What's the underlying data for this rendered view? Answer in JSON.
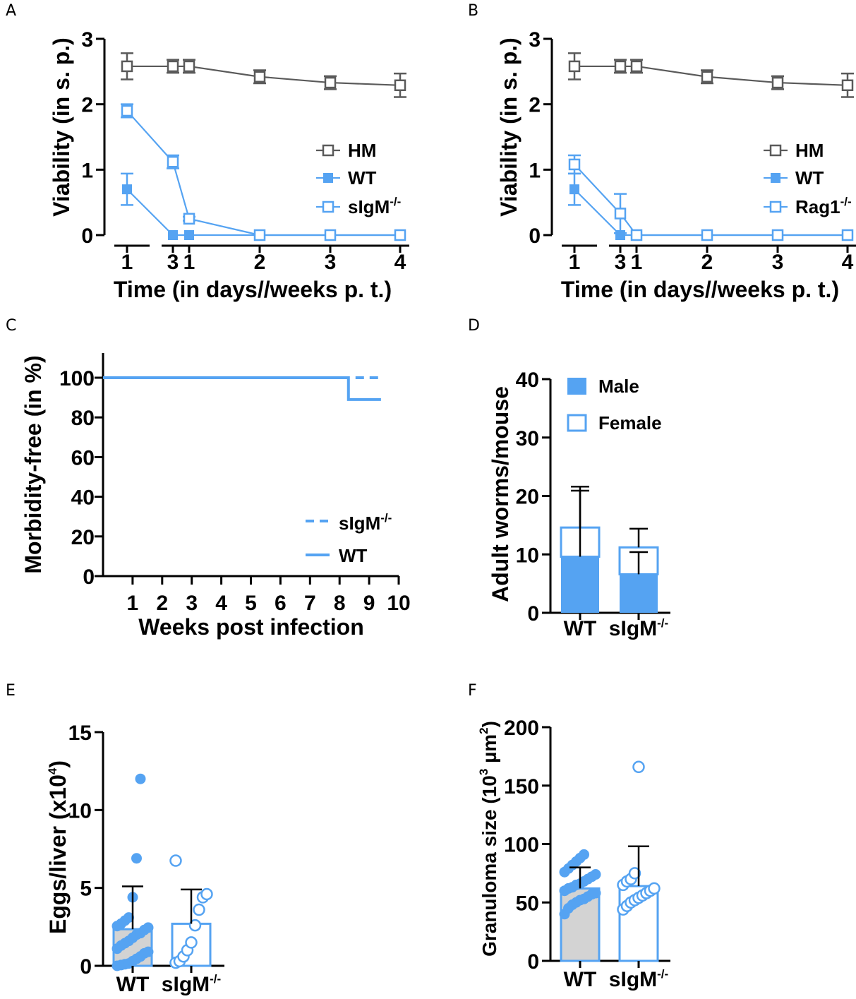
{
  "colors": {
    "blue": "#55a3f2",
    "gray": "#5a5a5a",
    "lightgray": "#d3d3d3",
    "black": "#000000",
    "white": "#ffffff"
  },
  "panels": {
    "A": "A",
    "B": "B",
    "C": "C",
    "D": "D",
    "E": "E",
    "F": "F"
  },
  "sup_ko": "-/-",
  "chart_data": [
    {
      "panel": "A",
      "type": "line",
      "xlabel": "Time (in days//weeks p. t.)",
      "ylabel": "Viability (in s. p.)",
      "ylim": [
        0,
        3
      ],
      "yticks": [
        "0",
        "1",
        "2",
        "3"
      ],
      "xtick_labels": [
        "1",
        "3",
        "1",
        "2",
        "3",
        "4"
      ],
      "legend": [
        "HM",
        "WT",
        "sIgM"
      ],
      "series": [
        {
          "name": "HM",
          "style": "open-gray",
          "points": [
            {
              "x": "day 1",
              "y": 2.58,
              "err": 0.2
            },
            {
              "x": "day 3",
              "y": 2.58,
              "err": 0.1
            },
            {
              "x": "week 1",
              "y": 2.58,
              "err": 0.1
            },
            {
              "x": "week 2",
              "y": 2.42,
              "err": 0.1
            },
            {
              "x": "week 3",
              "y": 2.33,
              "err": 0.1
            },
            {
              "x": "week 4",
              "y": 2.29,
              "err": 0.18
            }
          ]
        },
        {
          "name": "WT",
          "style": "filled-blue",
          "points": [
            {
              "x": "day 1",
              "y": 0.7,
              "err": 0.24
            },
            {
              "x": "day 3",
              "y": 0.0,
              "err": 0
            },
            {
              "x": "week 1",
              "y": 0.0,
              "err": 0
            },
            {
              "x": "week 2",
              "y": 0.0,
              "err": 0
            },
            {
              "x": "week 3",
              "y": 0.0,
              "err": 0
            },
            {
              "x": "week 4",
              "y": 0.0,
              "err": 0
            }
          ]
        },
        {
          "name": "sIgM-/-",
          "style": "open-blue",
          "points": [
            {
              "x": "day 1",
              "y": 1.9,
              "err": 0.1
            },
            {
              "x": "day 3",
              "y": 1.12,
              "err": 0.1
            },
            {
              "x": "week 1",
              "y": 0.25,
              "err": 0.03
            },
            {
              "x": "week 2",
              "y": 0.0,
              "err": 0
            },
            {
              "x": "week 3",
              "y": 0.0,
              "err": 0
            },
            {
              "x": "week 4",
              "y": 0.0,
              "err": 0
            }
          ]
        }
      ]
    },
    {
      "panel": "B",
      "type": "line",
      "xlabel": "Time (in days//weeks p. t.)",
      "ylabel": "Viability (in s. p.)",
      "ylim": [
        0,
        3
      ],
      "yticks": [
        "0",
        "1",
        "2",
        "3"
      ],
      "xtick_labels": [
        "1",
        "3",
        "1",
        "2",
        "3",
        "4"
      ],
      "legend": [
        "HM",
        "WT",
        "Rag1"
      ],
      "series": [
        {
          "name": "HM",
          "style": "open-gray",
          "points": [
            {
              "x": "day 1",
              "y": 2.58,
              "err": 0.2
            },
            {
              "x": "day 3",
              "y": 2.58,
              "err": 0.1
            },
            {
              "x": "week 1",
              "y": 2.58,
              "err": 0.1
            },
            {
              "x": "week 2",
              "y": 2.42,
              "err": 0.1
            },
            {
              "x": "week 3",
              "y": 2.33,
              "err": 0.1
            },
            {
              "x": "week 4",
              "y": 2.29,
              "err": 0.18
            }
          ]
        },
        {
          "name": "WT",
          "style": "filled-blue",
          "points": [
            {
              "x": "day 1",
              "y": 0.7,
              "err": 0.24
            },
            {
              "x": "day 3",
              "y": 0.0,
              "err": 0
            },
            {
              "x": "week 1",
              "y": 0.0,
              "err": 0
            },
            {
              "x": "week 2",
              "y": 0.0,
              "err": 0
            },
            {
              "x": "week 3",
              "y": 0.0,
              "err": 0
            },
            {
              "x": "week 4",
              "y": 0.0,
              "err": 0
            }
          ]
        },
        {
          "name": "Rag1-/-",
          "style": "open-blue",
          "points": [
            {
              "x": "day 1",
              "y": 1.08,
              "err": 0.14
            },
            {
              "x": "day 3",
              "y": 0.33,
              "err": 0.3
            },
            {
              "x": "week 1",
              "y": 0.0,
              "err": 0
            },
            {
              "x": "week 2",
              "y": 0.0,
              "err": 0
            },
            {
              "x": "week 3",
              "y": 0.0,
              "err": 0
            },
            {
              "x": "week 4",
              "y": 0.0,
              "err": 0
            }
          ]
        }
      ]
    },
    {
      "panel": "C",
      "type": "line",
      "xlabel": "Weeks post infection",
      "ylabel": "Morbidity-free (in %)",
      "ylim": [
        0,
        100
      ],
      "xlim": [
        0,
        10
      ],
      "yticks": [
        "0",
        "20",
        "40",
        "60",
        "80",
        "100"
      ],
      "xticks": [
        "1",
        "2",
        "3",
        "4",
        "5",
        "6",
        "7",
        "8",
        "9",
        "10"
      ],
      "legend": [
        "sIgM",
        "WT"
      ],
      "series": [
        {
          "name": "sIgM-/-",
          "style": "dashed",
          "steps": [
            {
              "x": 0,
              "y": 100
            },
            {
              "x": 9.4,
              "y": 100
            }
          ]
        },
        {
          "name": "WT",
          "style": "solid",
          "steps": [
            {
              "x": 0,
              "y": 100
            },
            {
              "x": 8.3,
              "y": 100
            },
            {
              "x": 8.3,
              "y": 89
            },
            {
              "x": 9.4,
              "y": 89
            }
          ]
        }
      ]
    },
    {
      "panel": "D",
      "type": "bar",
      "stacked": true,
      "ylabel": "Adult worms/mouse",
      "ylim": [
        0,
        40
      ],
      "yticks": [
        "0",
        "10",
        "20",
        "30",
        "40"
      ],
      "categories": [
        "WT",
        "sIgM"
      ],
      "legend": [
        "Male",
        "Female"
      ],
      "series": [
        {
          "name": "Male",
          "values": [
            9.6,
            6.6
          ],
          "sd": [
            11.3,
            3.8
          ]
        },
        {
          "name": "Female",
          "values": [
            5.0,
            4.6
          ],
          "sd": [
            7.0,
            3.2
          ]
        }
      ]
    },
    {
      "panel": "E",
      "type": "bar",
      "ylabel": "Eggs/liver (x10",
      "ylabel_sup": "4",
      "ylabel_end": ")",
      "ylim": [
        0,
        15
      ],
      "yticks": [
        "0",
        "5",
        "10",
        "15"
      ],
      "categories": [
        "WT",
        "sIgM"
      ],
      "means": [
        2.35,
        2.7
      ],
      "sd": [
        2.75,
        2.2
      ],
      "points": [
        [
          0.0,
          0.05,
          0.1,
          0.15,
          0.3,
          0.45,
          0.6,
          0.8,
          0.9,
          1.1,
          1.3,
          1.45,
          1.6,
          1.8,
          2.0,
          2.1,
          2.3,
          2.45,
          2.55,
          2.7,
          2.9,
          3.1,
          4.4,
          6.9,
          12.0
        ],
        [
          0.2,
          0.3,
          0.6,
          1.0,
          1.5,
          2.6,
          3.6,
          4.4,
          4.6,
          6.75
        ]
      ]
    },
    {
      "panel": "F",
      "type": "bar",
      "ylabel": "Granuloma size (10",
      "ylabel_sup1": "3",
      "ylabel_mid": " µm",
      "ylabel_sup2": "2",
      "ylabel_end": ")",
      "ylim": [
        0,
        200
      ],
      "yticks": [
        "0",
        "50",
        "100",
        "150",
        "200"
      ],
      "categories": [
        "WT",
        "sIgM"
      ],
      "means": [
        62,
        64
      ],
      "sd": [
        18,
        34
      ],
      "points": [
        [
          40,
          45,
          48,
          50,
          52,
          53,
          55,
          57,
          58,
          60,
          62,
          63,
          65,
          66,
          68,
          70,
          72,
          74,
          76,
          79,
          82,
          85,
          88,
          91
        ],
        [
          44,
          47,
          50,
          52,
          54,
          56,
          58,
          60,
          62,
          65,
          68,
          70,
          75,
          166
        ]
      ]
    }
  ]
}
